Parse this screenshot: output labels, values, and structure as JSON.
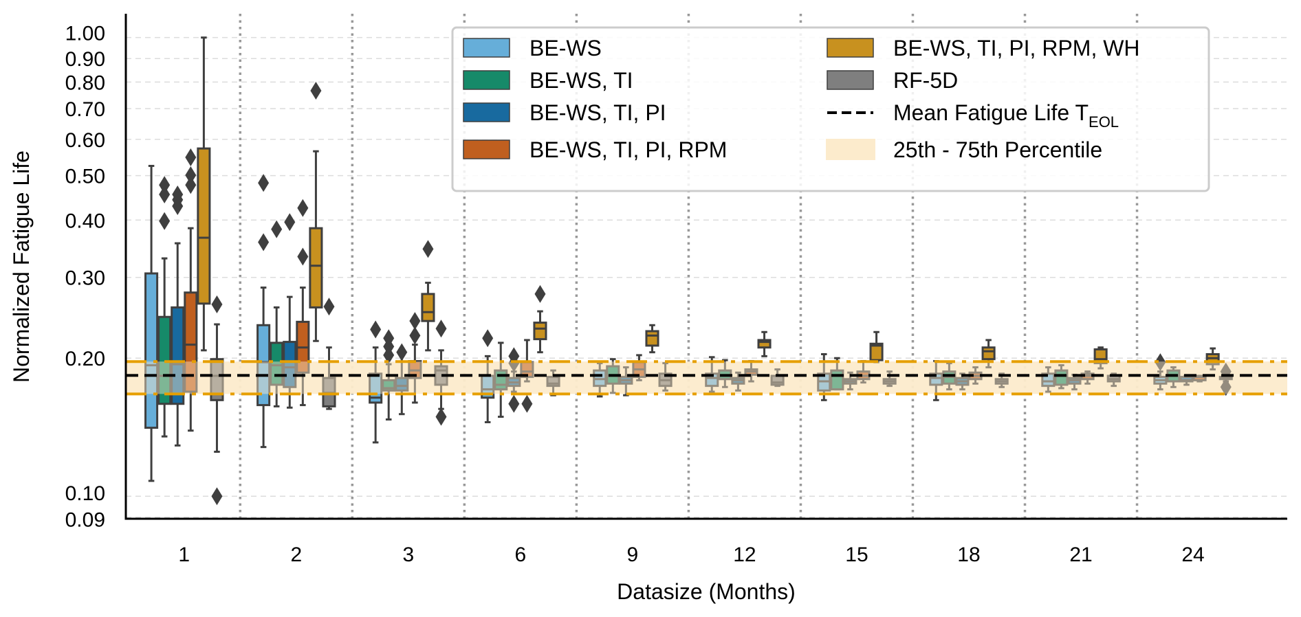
{
  "chart_data": {
    "type": "box",
    "title": "",
    "xlabel": "Datasize (Months)",
    "ylabel": "Normalized Fatigue Life",
    "yscale": "log",
    "ylim": [
      0.0893,
      1.127
    ],
    "grid": "y-dashed",
    "legend_position": "top-right",
    "categories": [
      "1",
      "2",
      "3",
      "6",
      "9",
      "12",
      "15",
      "18",
      "21",
      "24"
    ],
    "yticks": [
      0.09,
      0.1,
      0.2,
      0.3,
      0.4,
      0.5,
      0.6,
      0.7,
      0.8,
      0.9,
      1.0
    ],
    "ytick_labels": [
      "0.09",
      "0.10",
      "0.20",
      "0.30",
      "0.40",
      "0.50",
      "0.60",
      "0.70",
      "0.80",
      "0.90",
      "1.00"
    ],
    "reference": {
      "mean_label": "Mean Fatigue Life T",
      "mean_label_sub": "EOL",
      "mean_value": 0.1834,
      "band_label": "25th - 75th Percentile",
      "band_low": 0.1671,
      "band_high": 0.1966,
      "mean_color": "#000000",
      "band_line_color": "#e69f00",
      "band_fill_color": "#fcebcc"
    },
    "series": [
      {
        "name": "BE-WS",
        "color": "#66aed9",
        "boxes": [
          {
            "whislo": 0.108,
            "q1": 0.141,
            "med": 0.193,
            "q3": 0.306,
            "whishi": 0.525,
            "fliers": []
          },
          {
            "whislo": 0.128,
            "q1": 0.158,
            "med": 0.196,
            "q3": 0.236,
            "whishi": 0.285,
            "fliers": [
              0.482,
              0.358
            ]
          },
          {
            "whislo": 0.131,
            "q1": 0.16,
            "med": 0.164,
            "q3": 0.185,
            "whishi": 0.211,
            "fliers": [
              0.231
            ]
          },
          {
            "whislo": 0.145,
            "q1": 0.164,
            "med": 0.171,
            "q3": 0.183,
            "whishi": 0.202,
            "fliers": [
              0.221
            ]
          },
          {
            "whislo": 0.165,
            "q1": 0.174,
            "med": 0.18,
            "q3": 0.188,
            "whishi": 0.195,
            "fliers": []
          },
          {
            "whislo": 0.169,
            "q1": 0.174,
            "med": 0.181,
            "q3": 0.185,
            "whishi": 0.201,
            "fliers": []
          },
          {
            "whislo": 0.162,
            "q1": 0.17,
            "med": 0.178,
            "q3": 0.185,
            "whishi": 0.204,
            "fliers": []
          },
          {
            "whislo": 0.162,
            "q1": 0.175,
            "med": 0.181,
            "q3": 0.185,
            "whishi": 0.197,
            "fliers": []
          },
          {
            "whislo": 0.169,
            "q1": 0.174,
            "med": 0.178,
            "q3": 0.185,
            "whishi": 0.191,
            "fliers": []
          },
          {
            "whislo": 0.171,
            "q1": 0.176,
            "med": 0.179,
            "q3": 0.182,
            "whishi": 0.187,
            "fliers": [
              0.196
            ]
          }
        ]
      },
      {
        "name": "BE-WS, TI",
        "color": "#168a69",
        "boxes": [
          {
            "whislo": 0.135,
            "q1": 0.159,
            "med": 0.183,
            "q3": 0.246,
            "whishi": 0.33,
            "fliers": [
              0.477,
              0.455,
              0.398
            ]
          },
          {
            "whislo": 0.157,
            "q1": 0.175,
            "med": 0.193,
            "q3": 0.216,
            "whishi": 0.258,
            "fliers": [
              0.382
            ]
          },
          {
            "whislo": 0.147,
            "q1": 0.17,
            "med": 0.172,
            "q3": 0.179,
            "whishi": 0.194,
            "fliers": [
              0.221,
              0.212,
              0.203
            ]
          },
          {
            "whislo": 0.149,
            "q1": 0.171,
            "med": 0.175,
            "q3": 0.188,
            "whishi": 0.216,
            "fliers": []
          },
          {
            "whislo": 0.168,
            "q1": 0.176,
            "med": 0.183,
            "q3": 0.192,
            "whishi": 0.199,
            "fliers": []
          },
          {
            "whislo": 0.173,
            "q1": 0.18,
            "med": 0.183,
            "q3": 0.188,
            "whishi": 0.198,
            "fliers": []
          },
          {
            "whislo": 0.171,
            "q1": 0.171,
            "med": 0.183,
            "q3": 0.188,
            "whishi": 0.2,
            "fliers": []
          },
          {
            "whislo": 0.171,
            "q1": 0.176,
            "med": 0.182,
            "q3": 0.187,
            "whishi": 0.195,
            "fliers": []
          },
          {
            "whislo": 0.172,
            "q1": 0.175,
            "med": 0.183,
            "q3": 0.188,
            "whishi": 0.193,
            "fliers": []
          },
          {
            "whislo": 0.173,
            "q1": 0.178,
            "med": 0.183,
            "q3": 0.188,
            "whishi": 0.191,
            "fliers": []
          }
        ]
      },
      {
        "name": "BE-WS, TI, PI",
        "color": "#186a9f",
        "boxes": [
          {
            "whislo": 0.129,
            "q1": 0.159,
            "med": 0.194,
            "q3": 0.258,
            "whishi": 0.356,
            "fliers": [
              0.455,
              0.443,
              0.429
            ]
          },
          {
            "whislo": 0.156,
            "q1": 0.173,
            "med": 0.191,
            "q3": 0.217,
            "whishi": 0.272,
            "fliers": [
              0.396
            ]
          },
          {
            "whislo": 0.151,
            "q1": 0.17,
            "med": 0.174,
            "q3": 0.181,
            "whishi": 0.203,
            "fliers": [
              0.206
            ]
          },
          {
            "whislo": 0.169,
            "q1": 0.174,
            "med": 0.177,
            "q3": 0.181,
            "whishi": 0.187,
            "fliers": [
              0.202,
              0.195,
              0.159
            ]
          },
          {
            "whislo": 0.166,
            "q1": 0.176,
            "med": 0.179,
            "q3": 0.182,
            "whishi": 0.191,
            "fliers": []
          },
          {
            "whislo": 0.17,
            "q1": 0.176,
            "med": 0.179,
            "q3": 0.181,
            "whishi": 0.186,
            "fliers": []
          },
          {
            "whislo": 0.171,
            "q1": 0.176,
            "med": 0.178,
            "q3": 0.18,
            "whishi": 0.186,
            "fliers": []
          },
          {
            "whislo": 0.171,
            "q1": 0.175,
            "med": 0.178,
            "q3": 0.181,
            "whishi": 0.185,
            "fliers": []
          },
          {
            "whislo": 0.171,
            "q1": 0.176,
            "med": 0.179,
            "q3": 0.181,
            "whishi": 0.184,
            "fliers": []
          },
          {
            "whislo": 0.175,
            "q1": 0.178,
            "med": 0.179,
            "q3": 0.182,
            "whishi": 0.183,
            "fliers": []
          }
        ]
      },
      {
        "name": "BE-WS, TI, PI, RPM",
        "color": "#c05f1f",
        "boxes": [
          {
            "whislo": 0.139,
            "q1": 0.169,
            "med": 0.214,
            "q3": 0.278,
            "whishi": 0.384,
            "fliers": [
              0.548,
              0.501,
              0.477
            ]
          },
          {
            "whislo": 0.158,
            "q1": 0.186,
            "med": 0.211,
            "q3": 0.24,
            "whishi": 0.285,
            "fliers": [
              0.425,
              0.333
            ]
          },
          {
            "whislo": 0.16,
            "q1": 0.181,
            "med": 0.188,
            "q3": 0.197,
            "whishi": 0.214,
            "fliers": [
              0.241,
              0.224
            ]
          },
          {
            "whislo": 0.178,
            "q1": 0.182,
            "med": 0.187,
            "q3": 0.196,
            "whishi": 0.219,
            "fliers": [
              0.159
            ]
          },
          {
            "whislo": 0.179,
            "q1": 0.182,
            "med": 0.189,
            "q3": 0.196,
            "whishi": 0.203,
            "fliers": []
          },
          {
            "whislo": 0.178,
            "q1": 0.184,
            "med": 0.187,
            "q3": 0.189,
            "whishi": 0.197,
            "fliers": []
          },
          {
            "whislo": 0.177,
            "q1": 0.18,
            "med": 0.183,
            "q3": 0.187,
            "whishi": 0.197,
            "fliers": []
          },
          {
            "whislo": 0.176,
            "q1": 0.18,
            "med": 0.183,
            "q3": 0.186,
            "whishi": 0.191,
            "fliers": []
          },
          {
            "whislo": 0.176,
            "q1": 0.18,
            "med": 0.183,
            "q3": 0.185,
            "whishi": 0.187,
            "fliers": []
          },
          {
            "whislo": 0.178,
            "q1": 0.179,
            "med": 0.182,
            "q3": 0.183,
            "whishi": 0.183,
            "fliers": []
          }
        ]
      },
      {
        "name": "BE-WS, TI, PI, RPM, WH",
        "color": "#c8911f",
        "boxes": [
          {
            "whislo": 0.208,
            "q1": 0.263,
            "med": 0.366,
            "q3": 0.573,
            "whishi": 1.0,
            "fliers": []
          },
          {
            "whislo": 0.218,
            "q1": 0.258,
            "med": 0.318,
            "q3": 0.384,
            "whishi": 0.565,
            "fliers": [
              0.766
            ]
          },
          {
            "whislo": 0.208,
            "q1": 0.241,
            "med": 0.252,
            "q3": 0.276,
            "whishi": 0.292,
            "fliers": [
              0.346
            ]
          },
          {
            "whislo": 0.206,
            "q1": 0.22,
            "med": 0.232,
            "q3": 0.239,
            "whishi": 0.253,
            "fliers": [
              0.276
            ]
          },
          {
            "whislo": 0.206,
            "q1": 0.213,
            "med": 0.224,
            "q3": 0.229,
            "whishi": 0.236,
            "fliers": []
          },
          {
            "whislo": 0.202,
            "q1": 0.211,
            "med": 0.217,
            "q3": 0.219,
            "whishi": 0.228,
            "fliers": []
          },
          {
            "whislo": 0.196,
            "q1": 0.198,
            "med": 0.213,
            "q3": 0.215,
            "whishi": 0.228,
            "fliers": []
          },
          {
            "whislo": 0.191,
            "q1": 0.199,
            "med": 0.207,
            "q3": 0.211,
            "whishi": 0.219,
            "fliers": []
          },
          {
            "whislo": 0.19,
            "q1": 0.195,
            "med": 0.199,
            "q3": 0.209,
            "whishi": 0.211,
            "fliers": []
          },
          {
            "whislo": 0.189,
            "q1": 0.194,
            "med": 0.2,
            "q3": 0.204,
            "whishi": 0.21,
            "fliers": []
          }
        ]
      },
      {
        "name": "RF-5D",
        "color": "#7f7f7f",
        "boxes": [
          {
            "whislo": 0.125,
            "q1": 0.162,
            "med": 0.183,
            "q3": 0.199,
            "whishi": 0.237,
            "fliers": [
              0.262,
              0.1
            ]
          },
          {
            "whislo": 0.155,
            "q1": 0.157,
            "med": 0.168,
            "q3": 0.181,
            "whishi": 0.211,
            "fliers": [
              0.259
            ]
          },
          {
            "whislo": 0.155,
            "q1": 0.175,
            "med": 0.188,
            "q3": 0.192,
            "whishi": 0.208,
            "fliers": [
              0.232,
              0.149
            ]
          },
          {
            "whislo": 0.166,
            "q1": 0.174,
            "med": 0.176,
            "q3": 0.182,
            "whishi": 0.188,
            "fliers": []
          },
          {
            "whislo": 0.17,
            "q1": 0.174,
            "med": 0.179,
            "q3": 0.185,
            "whishi": 0.195,
            "fliers": []
          },
          {
            "whislo": 0.174,
            "q1": 0.175,
            "med": 0.177,
            "q3": 0.183,
            "whishi": 0.189,
            "fliers": []
          },
          {
            "whislo": 0.174,
            "q1": 0.176,
            "med": 0.178,
            "q3": 0.18,
            "whishi": 0.187,
            "fliers": []
          },
          {
            "whislo": 0.173,
            "q1": 0.176,
            "med": 0.178,
            "q3": 0.18,
            "whishi": 0.185,
            "fliers": []
          },
          {
            "whislo": 0.174,
            "q1": 0.178,
            "med": 0.18,
            "q3": 0.183,
            "whishi": 0.185,
            "fliers": []
          },
          {
            "whislo": 0.178,
            "q1": 0.18,
            "med": 0.181,
            "q3": 0.182,
            "whishi": 0.183,
            "fliers": [
              0.187,
              0.173
            ]
          }
        ]
      }
    ]
  }
}
